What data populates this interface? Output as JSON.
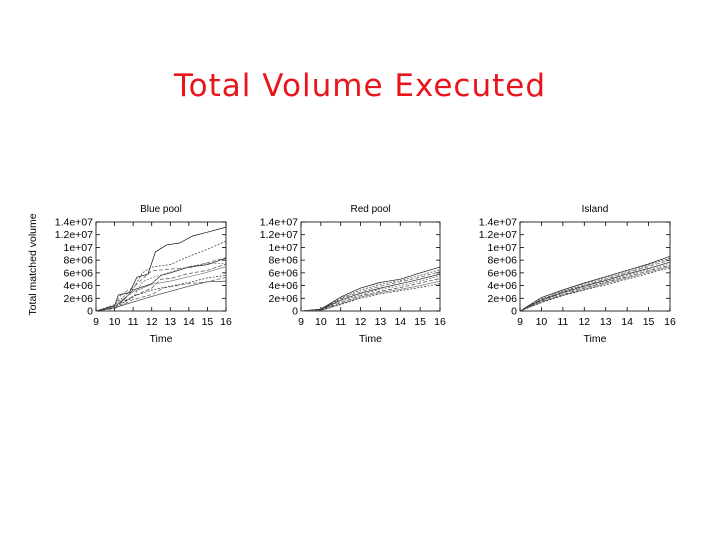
{
  "slide": {
    "title": "Total Volume Executed"
  },
  "chart_data": [
    {
      "type": "line",
      "title": "Blue pool",
      "xlabel": "Time",
      "ylabel": "Total matched volume",
      "xlim": [
        9,
        16
      ],
      "ylim": [
        0,
        14000000
      ],
      "xticks": [
        "9",
        "10",
        "11",
        "12",
        "13",
        "14",
        "15",
        "16"
      ],
      "yticks": [
        "0",
        "2e+06",
        "4e+06",
        "6e+06",
        "8e+06",
        "1e+07",
        "1.2e+07",
        "1.4e+07"
      ],
      "grid": false,
      "series": [
        {
          "x": [
            9,
            10,
            10.2,
            10.8,
            11.2,
            11.8,
            12.2,
            12.8,
            13.5,
            14.2,
            15,
            16
          ],
          "values": [
            0,
            800000,
            2500000,
            2900000,
            5300000,
            5800000,
            9300000,
            10400000,
            10700000,
            11800000,
            12400000,
            13200000
          ]
        },
        {
          "x": [
            9,
            10,
            10.5,
            11,
            11.5,
            12,
            13,
            14,
            15,
            16
          ],
          "values": [
            0,
            1000000,
            2300000,
            3500000,
            6000000,
            6900000,
            7300000,
            8600000,
            9700000,
            11000000
          ]
        },
        {
          "x": [
            9,
            10,
            10.4,
            11,
            11.6,
            12,
            13,
            14,
            15,
            16
          ],
          "values": [
            0,
            900000,
            2700000,
            3700000,
            5300000,
            6300000,
            6600000,
            6800000,
            7600000,
            8400000
          ]
        },
        {
          "x": [
            9,
            10,
            10.5,
            11,
            12,
            12.5,
            13,
            14,
            15,
            16
          ],
          "values": [
            0,
            700000,
            1800000,
            3300000,
            4300000,
            5600000,
            6000000,
            6900000,
            7300000,
            8300000
          ]
        },
        {
          "x": [
            9,
            10,
            11,
            11.5,
            12,
            13,
            14,
            15,
            16
          ],
          "values": [
            0,
            600000,
            2100000,
            4600000,
            5200000,
            6100000,
            7000000,
            7500000,
            7500000
          ]
        },
        {
          "x": [
            9,
            10,
            11,
            12,
            12.5,
            13,
            14,
            15,
            16
          ],
          "values": [
            0,
            800000,
            2300000,
            3600000,
            5000000,
            5100000,
            5900000,
            6400000,
            7400000
          ]
        },
        {
          "x": [
            9,
            10,
            10.5,
            11,
            12,
            13,
            14,
            15,
            16
          ],
          "values": [
            0,
            700000,
            2000000,
            3000000,
            4200000,
            4700000,
            5400000,
            6100000,
            7000000
          ]
        },
        {
          "x": [
            9,
            10,
            11,
            12,
            13,
            14,
            15,
            16
          ],
          "values": [
            0,
            500000,
            2300000,
            3300000,
            3900000,
            4500000,
            5200000,
            5600000
          ]
        },
        {
          "x": [
            9,
            10,
            11,
            12,
            12.6,
            13,
            14,
            15,
            16
          ],
          "values": [
            0,
            400000,
            1800000,
            2600000,
            3600000,
            3800000,
            4300000,
            4600000,
            5300000
          ]
        },
        {
          "x": [
            9,
            10,
            11,
            12,
            13,
            14,
            15,
            16
          ],
          "values": [
            0,
            500000,
            1400000,
            2300000,
            3100000,
            3900000,
            4600000,
            4700000
          ]
        }
      ]
    },
    {
      "type": "line",
      "title": "Red pool",
      "xlabel": "Time",
      "ylabel": "",
      "xlim": [
        9,
        16
      ],
      "ylim": [
        0,
        14000000
      ],
      "xticks": [
        "9",
        "10",
        "11",
        "12",
        "13",
        "14",
        "15",
        "16"
      ],
      "yticks": [
        "0",
        "2e+06",
        "4e+06",
        "6e+06",
        "8e+06",
        "1e+07",
        "1.2e+07",
        "1.4e+07"
      ],
      "grid": false,
      "series": [
        {
          "x": [
            9,
            10,
            11,
            12,
            13,
            14,
            15,
            16
          ],
          "values": [
            0,
            300000,
            2200000,
            3600000,
            4500000,
            5000000,
            6000000,
            6900000
          ]
        },
        {
          "x": [
            9,
            10,
            11,
            12,
            13,
            14,
            15,
            16
          ],
          "values": [
            0,
            200000,
            2000000,
            3300000,
            4200000,
            4800000,
            5600000,
            6500000
          ]
        },
        {
          "x": [
            9,
            10,
            11,
            12,
            13,
            14,
            15,
            16
          ],
          "values": [
            0,
            250000,
            1900000,
            3000000,
            3900000,
            4600000,
            5300000,
            6200000
          ]
        },
        {
          "x": [
            9,
            10,
            11,
            12,
            13,
            14,
            15,
            16
          ],
          "values": [
            0,
            200000,
            1700000,
            2800000,
            3600000,
            4300000,
            5000000,
            5800000
          ]
        },
        {
          "x": [
            9,
            10,
            11,
            12,
            13,
            14,
            15,
            16
          ],
          "values": [
            0,
            150000,
            1500000,
            2600000,
            3400000,
            4000000,
            4700000,
            5500000
          ]
        },
        {
          "x": [
            9,
            10,
            11,
            12,
            13,
            14,
            15,
            16
          ],
          "values": [
            0,
            150000,
            1300000,
            2400000,
            3100000,
            3700000,
            4400000,
            5100000
          ]
        },
        {
          "x": [
            9,
            10,
            11,
            12,
            13,
            14,
            15,
            16
          ],
          "values": [
            0,
            100000,
            1100000,
            2200000,
            2900000,
            3400000,
            4000000,
            4700000
          ]
        },
        {
          "x": [
            9,
            10,
            11,
            12,
            13,
            14,
            15,
            16
          ],
          "values": [
            0,
            100000,
            1000000,
            2000000,
            2700000,
            3200000,
            3700000,
            4300000
          ]
        }
      ]
    },
    {
      "type": "line",
      "title": "Island",
      "xlabel": "Time",
      "ylabel": "",
      "xlim": [
        9,
        16
      ],
      "ylim": [
        0,
        14000000
      ],
      "xticks": [
        "9",
        "10",
        "11",
        "12",
        "13",
        "14",
        "15",
        "16"
      ],
      "yticks": [
        "0",
        "2e+06",
        "4e+06",
        "6e+06",
        "8e+06",
        "1e+07",
        "1.2e+07",
        "1.4e+07"
      ],
      "grid": false,
      "series": [
        {
          "x": [
            9,
            10,
            11,
            12,
            13,
            14,
            15,
            16
          ],
          "values": [
            0,
            2100000,
            3300000,
            4400000,
            5400000,
            6400000,
            7400000,
            8600000
          ]
        },
        {
          "x": [
            9,
            10,
            11,
            12,
            13,
            14,
            15,
            16
          ],
          "values": [
            0,
            1900000,
            3100000,
            4200000,
            5200000,
            6200000,
            7200000,
            8300000
          ]
        },
        {
          "x": [
            9,
            10,
            11,
            12,
            13,
            14,
            15,
            16
          ],
          "values": [
            0,
            1800000,
            3000000,
            4000000,
            5000000,
            6000000,
            7000000,
            8000000
          ]
        },
        {
          "x": [
            9,
            10,
            11,
            12,
            13,
            14,
            15,
            16
          ],
          "values": [
            0,
            1700000,
            2900000,
            3900000,
            4800000,
            5800000,
            6700000,
            7700000
          ]
        },
        {
          "x": [
            9,
            10,
            11,
            12,
            13,
            14,
            15,
            16
          ],
          "values": [
            0,
            1600000,
            2800000,
            3700000,
            4600000,
            5600000,
            6500000,
            7500000
          ]
        },
        {
          "x": [
            9,
            10,
            11,
            12,
            13,
            14,
            15,
            16
          ],
          "values": [
            0,
            1500000,
            2600000,
            3600000,
            4500000,
            5400000,
            6300000,
            7200000
          ]
        },
        {
          "x": [
            9,
            10,
            11,
            12,
            13,
            14,
            15,
            16
          ],
          "values": [
            0,
            1400000,
            2500000,
            3400000,
            4300000,
            5200000,
            6100000,
            7000000
          ]
        },
        {
          "x": [
            9,
            10,
            11,
            12,
            13,
            14,
            15,
            16
          ],
          "values": [
            0,
            1300000,
            2400000,
            3300000,
            4100000,
            5000000,
            5900000,
            6800000
          ]
        }
      ]
    }
  ]
}
